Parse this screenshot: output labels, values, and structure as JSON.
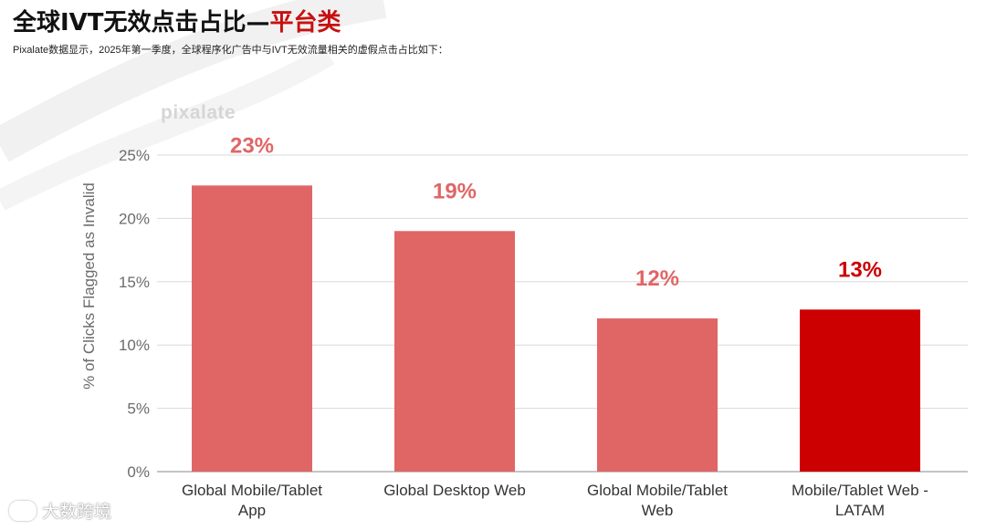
{
  "header": {
    "title_main": "全球IVT无效点击占比—",
    "title_accent": "平台类",
    "subtitle": "Pixalate数据显示，2025年第一季度，全球程序化广告中与IVT无效流量相关的虚假点击占比如下："
  },
  "watermark": {
    "text": "pixalate"
  },
  "footer": {
    "brand": "大数跨境"
  },
  "colors": {
    "bar": "#e06666",
    "bar_highlight": "#cc0000",
    "label": "#e06666",
    "label_highlight": "#cc0000",
    "title_accent": "#c81010"
  },
  "chart_data": {
    "type": "bar",
    "categories": [
      [
        "Global Mobile/Tablet",
        "App"
      ],
      [
        "Global Desktop Web"
      ],
      [
        "Global Mobile/Tablet",
        "Web"
      ],
      [
        "Mobile/Tablet Web -",
        "LATAM"
      ]
    ],
    "values": [
      22.6,
      19.0,
      12.1,
      12.8
    ],
    "data_labels": [
      "23%",
      "19%",
      "12%",
      "13%"
    ],
    "highlight_index": 3,
    "ylabel": "% of Clicks Flagged as Invalid",
    "yticks": [
      "0%",
      "5%",
      "10%",
      "15%",
      "20%",
      "25%"
    ],
    "ylim": [
      0,
      25
    ],
    "grid": true,
    "legend": "none"
  }
}
